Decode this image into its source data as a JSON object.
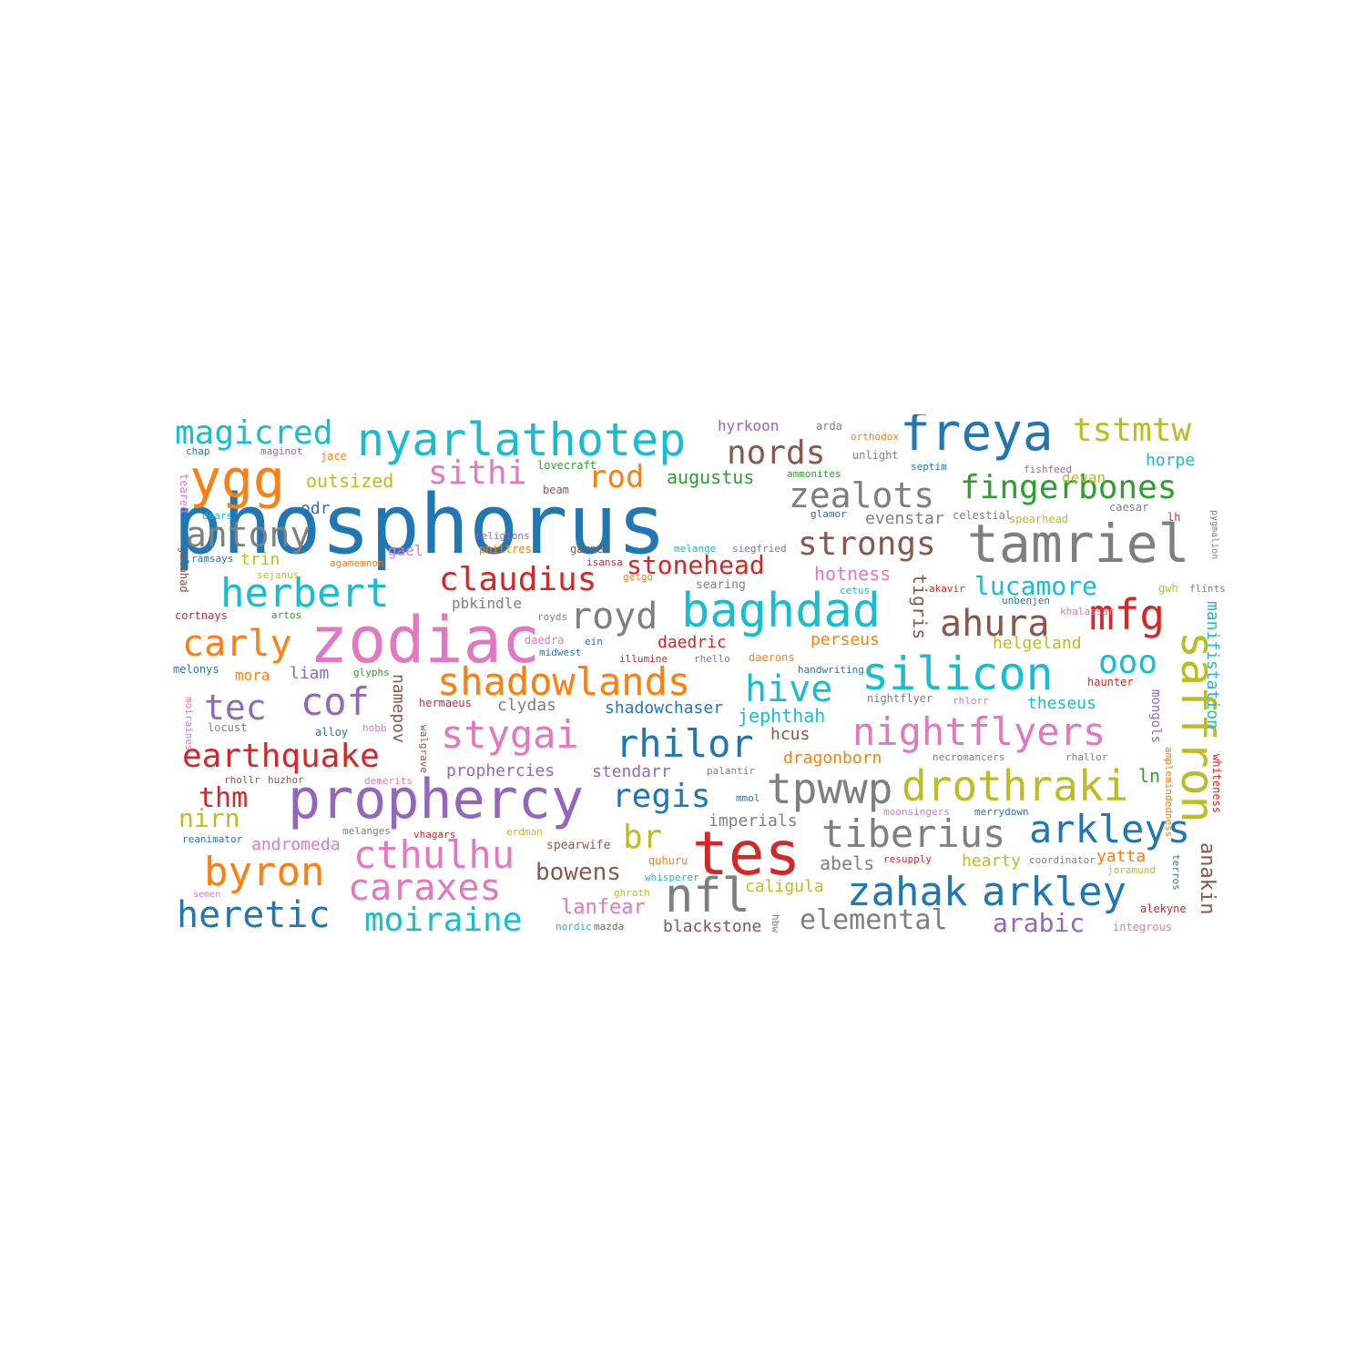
{
  "word_cloud": {
    "palette": {
      "blue": "#1f77b4",
      "orange": "#ff7f0e",
      "green": "#2ca02c",
      "red": "#d62728",
      "purple": "#9467bd",
      "brown": "#8c564b",
      "pink": "#e377c2",
      "gray": "#7f7f7f",
      "olive": "#bcbd22",
      "cyan": "#17becf"
    },
    "words": [
      {
        "text": "phosphorus",
        "color": "#1f77b4"
      },
      {
        "text": "zodiac",
        "color": "#e377c2"
      },
      {
        "text": "prophercy",
        "color": "#9467bd"
      },
      {
        "text": "tes",
        "color": "#d62728"
      },
      {
        "text": "tamriel",
        "color": "#7f7f7f"
      },
      {
        "text": "freya",
        "color": "#1f77b4"
      },
      {
        "text": "ygg",
        "color": "#ff7f0e"
      },
      {
        "text": "nyarlathotep",
        "color": "#17becf"
      },
      {
        "text": "baghdad",
        "color": "#17becf"
      },
      {
        "text": "silicon",
        "color": "#17becf"
      },
      {
        "text": "nightflyers",
        "color": "#e377c2"
      },
      {
        "text": "shadowlands",
        "color": "#ff7f0e"
      },
      {
        "text": "magicred",
        "color": "#17becf"
      },
      {
        "text": "tstmtw",
        "color": "#bcbd22"
      },
      {
        "text": "fingerbones",
        "color": "#2ca02c"
      },
      {
        "text": "zealots",
        "color": "#7f7f7f"
      },
      {
        "text": "nords",
        "color": "#8c564b"
      },
      {
        "text": "sithi",
        "color": "#e377c2"
      },
      {
        "text": "rod",
        "color": "#ff7f0e"
      },
      {
        "text": "antony",
        "color": "#7f7f7f"
      },
      {
        "text": "strongs",
        "color": "#8c564b"
      },
      {
        "text": "herbert",
        "color": "#17becf"
      },
      {
        "text": "claudius",
        "color": "#d62728"
      },
      {
        "text": "stonehead",
        "color": "#d62728"
      },
      {
        "text": "lucamore",
        "color": "#17becf"
      },
      {
        "text": "royd",
        "color": "#7f7f7f"
      },
      {
        "text": "ahura",
        "color": "#8c564b"
      },
      {
        "text": "mfg",
        "color": "#d62728"
      },
      {
        "text": "carly",
        "color": "#ff7f0e"
      },
      {
        "text": "hive",
        "color": "#17becf"
      },
      {
        "text": "ooo",
        "color": "#17becf"
      },
      {
        "text": "saffron",
        "color": "#bcbd22"
      },
      {
        "text": "tec",
        "color": "#9467bd"
      },
      {
        "text": "cof",
        "color": "#9467bd"
      },
      {
        "text": "stygai",
        "color": "#e377c2"
      },
      {
        "text": "rhilor",
        "color": "#1f77b4"
      },
      {
        "text": "earthquake",
        "color": "#d62728"
      },
      {
        "text": "tpwwp",
        "color": "#7f7f7f"
      },
      {
        "text": "drothraki",
        "color": "#bcbd22"
      },
      {
        "text": "regis",
        "color": "#1f77b4"
      },
      {
        "text": "thm",
        "color": "#d62728"
      },
      {
        "text": "nirn",
        "color": "#bcbd22"
      },
      {
        "text": "tiberius",
        "color": "#7f7f7f"
      },
      {
        "text": "arkleys",
        "color": "#1f77b4"
      },
      {
        "text": "cthulhu",
        "color": "#e377c2"
      },
      {
        "text": "br",
        "color": "#bcbd22"
      },
      {
        "text": "byron",
        "color": "#ff7f0e"
      },
      {
        "text": "caraxes",
        "color": "#e377c2"
      },
      {
        "text": "nfl",
        "color": "#7f7f7f"
      },
      {
        "text": "zahak",
        "color": "#1f77b4"
      },
      {
        "text": "arkley",
        "color": "#1f77b4"
      },
      {
        "text": "heretic",
        "color": "#1f77b4"
      },
      {
        "text": "moiraine",
        "color": "#17becf"
      },
      {
        "text": "elemental",
        "color": "#7f7f7f"
      },
      {
        "text": "arabic",
        "color": "#9467bd"
      },
      {
        "text": "bowens",
        "color": "#8c564b"
      },
      {
        "text": "lanfear",
        "color": "#e377c2"
      },
      {
        "text": "anakin",
        "color": "#8c564b"
      },
      {
        "text": "manifistation",
        "color": "#17becf"
      },
      {
        "text": "tigris",
        "color": "#8c564b"
      },
      {
        "text": "namepov",
        "color": "#8c564b"
      },
      {
        "text": "augustus",
        "color": "#2ca02c"
      },
      {
        "text": "outsized",
        "color": "#bcbd22"
      },
      {
        "text": "horpe",
        "color": "#17becf"
      },
      {
        "text": "devan",
        "color": "#bcbd22"
      },
      {
        "text": "hyrkoon",
        "color": "#9467bd"
      },
      {
        "text": "evenstar",
        "color": "#7f7f7f"
      },
      {
        "text": "hotness",
        "color": "#e377c2"
      },
      {
        "text": "odr",
        "color": "#1f77b4"
      },
      {
        "text": "trin",
        "color": "#bcbd22"
      },
      {
        "text": "gael",
        "color": "#e377c2"
      },
      {
        "text": "pbkindle",
        "color": "#7f7f7f"
      },
      {
        "text": "daedric",
        "color": "#d62728"
      },
      {
        "text": "perseus",
        "color": "#ff7f0e"
      },
      {
        "text": "helgeland",
        "color": "#bcbd22"
      },
      {
        "text": "liam",
        "color": "#9467bd"
      },
      {
        "text": "mora",
        "color": "#ff7f0e"
      },
      {
        "text": "shadowchaser",
        "color": "#1f77b4"
      },
      {
        "text": "jephthah",
        "color": "#17becf"
      },
      {
        "text": "theseus",
        "color": "#17becf"
      },
      {
        "text": "clydas",
        "color": "#7f7f7f"
      },
      {
        "text": "hcus",
        "color": "#8c564b"
      },
      {
        "text": "dragonborn",
        "color": "#ff7f0e"
      },
      {
        "text": "prophercies",
        "color": "#9467bd"
      },
      {
        "text": "stendarr",
        "color": "#9467bd"
      },
      {
        "text": "ln",
        "color": "#2ca02c"
      },
      {
        "text": "imperials",
        "color": "#7f7f7f"
      },
      {
        "text": "andromeda",
        "color": "#e377c2"
      },
      {
        "text": "abels",
        "color": "#7f7f7f"
      },
      {
        "text": "hearty",
        "color": "#bcbd22"
      },
      {
        "text": "yatta",
        "color": "#ff7f0e"
      },
      {
        "text": "caligula",
        "color": "#bcbd22"
      },
      {
        "text": "blackstone",
        "color": "#8c564b"
      },
      {
        "text": "mongols",
        "color": "#9467bd"
      },
      {
        "text": "whiteness",
        "color": "#d62728"
      },
      {
        "text": "arda",
        "color": "#7f7f7f"
      },
      {
        "text": "orthodox",
        "color": "#ff7f0e"
      },
      {
        "text": "unlight",
        "color": "#7f7f7f"
      },
      {
        "text": "septim",
        "color": "#1f77b4"
      },
      {
        "text": "fishfeed",
        "color": "#9467bd"
      },
      {
        "text": "caesar",
        "color": "#7f7f7f"
      },
      {
        "text": "lh",
        "color": "#d62728"
      },
      {
        "text": "spearhead",
        "color": "#bcbd22"
      },
      {
        "text": "celestial",
        "color": "#7f7f7f"
      },
      {
        "text": "lovecraft",
        "color": "#2ca02c"
      },
      {
        "text": "ammonites",
        "color": "#2ca02c"
      },
      {
        "text": "glamor",
        "color": "#1f77b4"
      },
      {
        "text": "chap",
        "color": "#1f77b4"
      },
      {
        "text": "maginot",
        "color": "#9467bd"
      },
      {
        "text": "jace",
        "color": "#ff7f0e"
      },
      {
        "text": "teared",
        "color": "#e377c2"
      },
      {
        "text": "dears",
        "color": "#17becf"
      },
      {
        "text": "beam",
        "color": "#8c564b"
      },
      {
        "text": "religions",
        "color": "#9467bd"
      },
      {
        "text": "ramsays",
        "color": "#1f77b4"
      },
      {
        "text": "galahad",
        "color": "#8c564b"
      },
      {
        "text": "sejanus",
        "color": "#bcbd22"
      },
      {
        "text": "agamemnon",
        "color": "#ff7f0e"
      },
      {
        "text": "philtres",
        "color": "#ff7f0e"
      },
      {
        "text": "garnet",
        "color": "#8c564b"
      },
      {
        "text": "melange",
        "color": "#17becf"
      },
      {
        "text": "siegfried",
        "color": "#9467bd"
      },
      {
        "text": "isansa",
        "color": "#d62728"
      },
      {
        "text": "getgo",
        "color": "#ff7f0e"
      },
      {
        "text": "searing",
        "color": "#7f7f7f"
      },
      {
        "text": "cetus",
        "color": "#17becf"
      },
      {
        "text": "akavir",
        "color": "#d62728"
      },
      {
        "text": "gwh",
        "color": "#bcbd22"
      },
      {
        "text": "flints",
        "color": "#7f7f7f"
      },
      {
        "text": "unbenjen",
        "color": "#1f77b4"
      },
      {
        "text": "khalassar",
        "color": "#e377c2"
      },
      {
        "text": "cortnays",
        "color": "#d62728"
      },
      {
        "text": "artos",
        "color": "#2ca02c"
      },
      {
        "text": "royds",
        "color": "#7f7f7f"
      },
      {
        "text": "daedra",
        "color": "#e377c2"
      },
      {
        "text": "ein",
        "color": "#1f77b4"
      },
      {
        "text": "midwest",
        "color": "#1f77b4"
      },
      {
        "text": "illumine",
        "color": "#d62728"
      },
      {
        "text": "rhello",
        "color": "#9467bd"
      },
      {
        "text": "daerons",
        "color": "#ff7f0e"
      },
      {
        "text": "handwriting",
        "color": "#1f77b4"
      },
      {
        "text": "melonys",
        "color": "#1f77b4"
      },
      {
        "text": "glyphs",
        "color": "#2ca02c"
      },
      {
        "text": "walgrave",
        "color": "#8c564b"
      },
      {
        "text": "hermaeus",
        "color": "#d62728"
      },
      {
        "text": "nightflyer",
        "color": "#7f7f7f"
      },
      {
        "text": "rhlorr",
        "color": "#e377c2"
      },
      {
        "text": "haunter",
        "color": "#d62728"
      },
      {
        "text": "moiraines",
        "color": "#e377c2"
      },
      {
        "text": "locust",
        "color": "#7f7f7f"
      },
      {
        "text": "alloy",
        "color": "#1f77b4"
      },
      {
        "text": "hobb",
        "color": "#e377c2"
      },
      {
        "text": "necromancers",
        "color": "#7f7f7f"
      },
      {
        "text": "rhallor",
        "color": "#7f7f7f"
      },
      {
        "text": "rhollr",
        "color": "#8c564b"
      },
      {
        "text": "huzhor",
        "color": "#8c564b"
      },
      {
        "text": "demerits",
        "color": "#e377c2"
      },
      {
        "text": "palantir",
        "color": "#7f7f7f"
      },
      {
        "text": "mmol",
        "color": "#1f77b4"
      },
      {
        "text": "moonsingers",
        "color": "#e377c2"
      },
      {
        "text": "merrydown",
        "color": "#1f77b4"
      },
      {
        "text": "amplemindedness",
        "color": "#ff7f0e"
      },
      {
        "text": "melanges",
        "color": "#7f7f7f"
      },
      {
        "text": "vhagars",
        "color": "#d62728"
      },
      {
        "text": "erdman",
        "color": "#bcbd22"
      },
      {
        "text": "reanimator",
        "color": "#1f77b4"
      },
      {
        "text": "spearwife",
        "color": "#8c564b"
      },
      {
        "text": "quhuru",
        "color": "#ff7f0e"
      },
      {
        "text": "resupply",
        "color": "#d62728"
      },
      {
        "text": "coordinator",
        "color": "#7f7f7f"
      },
      {
        "text": "joramund",
        "color": "#bcbd22"
      },
      {
        "text": "terros",
        "color": "#1f77b4"
      },
      {
        "text": "semen",
        "color": "#e377c2"
      },
      {
        "text": "whisperer",
        "color": "#17becf"
      },
      {
        "text": "ghroth",
        "color": "#bcbd22"
      },
      {
        "text": "hbw",
        "color": "#9467bd"
      },
      {
        "text": "alekyne",
        "color": "#d62728"
      },
      {
        "text": "nordic",
        "color": "#17becf"
      },
      {
        "text": "mazda",
        "color": "#8c564b"
      },
      {
        "text": "integrous",
        "color": "#e377c2"
      },
      {
        "text": "pygmalion",
        "color": "#7f7f7f"
      }
    ]
  }
}
